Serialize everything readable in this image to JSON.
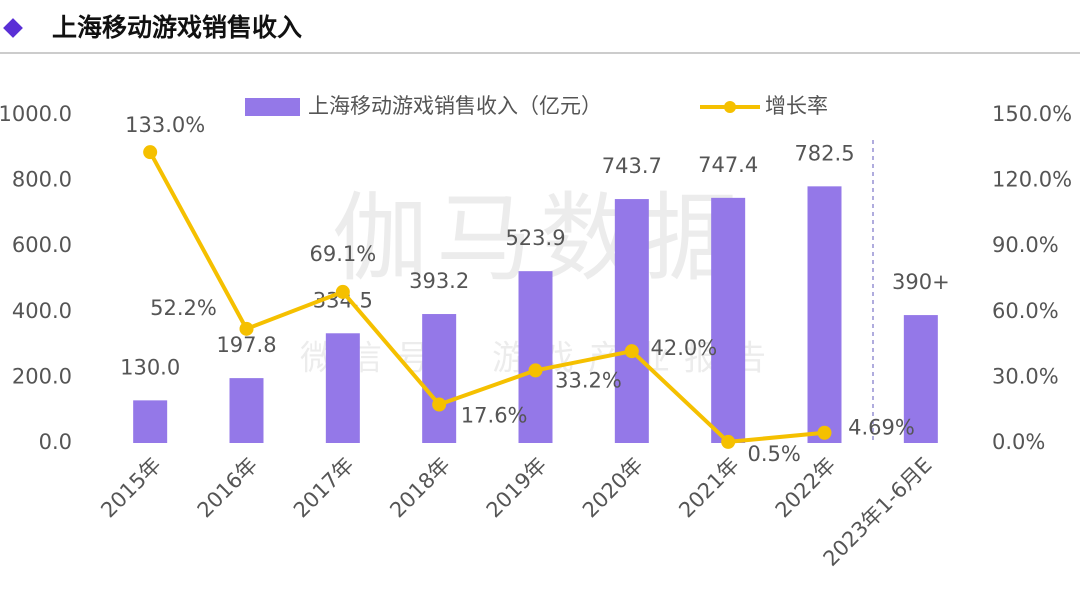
{
  "title": "上海移动游戏销售收入",
  "watermark": {
    "brand": "伽马数据",
    "note": "微信号：游戏产业报告"
  },
  "chart_data": {
    "type": "bar_line",
    "categories": [
      "2015年",
      "2016年",
      "2017年",
      "2018年",
      "2019年",
      "2020年",
      "2021年",
      "2022年",
      "2023年1-6月E"
    ],
    "series": [
      {
        "name": "上海移动游戏销售收入（亿元）",
        "type": "bar",
        "color": "#9478e8",
        "values": [
          130.0,
          197.8,
          334.5,
          393.2,
          523.9,
          743.7,
          747.4,
          782.5,
          390
        ],
        "value_labels": [
          "130.0",
          "197.8",
          "334.5",
          "393.2",
          "523.9",
          "743.7",
          "747.4",
          "782.5",
          "390+"
        ]
      },
      {
        "name": "增长率",
        "type": "line",
        "axis": "y2",
        "color": "#f5c000",
        "values": [
          133.0,
          52.2,
          69.1,
          17.6,
          33.2,
          42.0,
          0.5,
          4.69,
          null
        ],
        "value_labels": [
          "133.0%",
          "52.2%",
          "69.1%",
          "17.6%",
          "33.2%",
          "42.0%",
          "0.5%",
          "4.69%",
          null
        ]
      }
    ],
    "ylim": [
      0,
      1000
    ],
    "yticks": [
      {
        "value": 0,
        "label": "0.0"
      },
      {
        "value": 200,
        "label": "200.0"
      },
      {
        "value": 400,
        "label": "400.0"
      },
      {
        "value": 600,
        "label": "600.0"
      },
      {
        "value": 800,
        "label": "800.0"
      },
      {
        "value": 1000,
        "label": "1000.0"
      }
    ],
    "y2lim": [
      0,
      150
    ],
    "y2ticks": [
      {
        "value": 0,
        "label": "0.0%"
      },
      {
        "value": 30,
        "label": "30.0%"
      },
      {
        "value": 60,
        "label": "60.0%"
      },
      {
        "value": 90,
        "label": "90.0%"
      },
      {
        "value": 120,
        "label": "120.0%"
      },
      {
        "value": 150,
        "label": "150.0%"
      }
    ],
    "legend": "top"
  }
}
